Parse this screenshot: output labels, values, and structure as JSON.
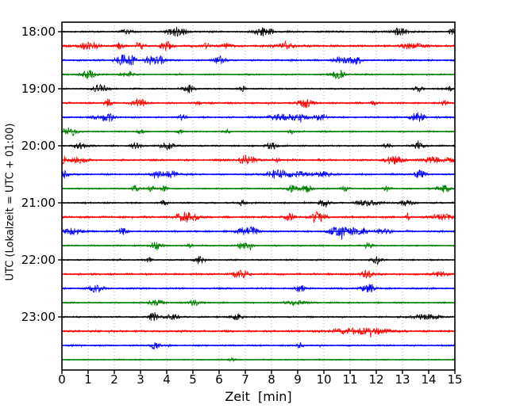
{
  "chart_data": {
    "type": "line",
    "subtype": "seismogram-dayplot",
    "title": "",
    "xlabel": "Zeit  [min]",
    "ylabel": "UTC (Lokalzeit = UTC + 01:00)",
    "xlim": [
      0,
      15
    ],
    "minutes_per_line": 15,
    "x_tick_labels": [
      "0",
      "1",
      "2",
      "3",
      "4",
      "5",
      "6",
      "7",
      "8",
      "9",
      "10",
      "11",
      "12",
      "13",
      "14",
      "15"
    ],
    "y_tick_labels": [
      {
        "trace": 0,
        "label": "18:00"
      },
      {
        "trace": 4,
        "label": "19:00"
      },
      {
        "trace": 8,
        "label": "20:00"
      },
      {
        "trace": 12,
        "label": "21:00"
      },
      {
        "trace": 16,
        "label": "22:00"
      },
      {
        "trace": 20,
        "label": "23:00"
      }
    ],
    "grid": {
      "vertical": true,
      "horizontal": false,
      "style": "dotted",
      "color": "#aaaaaa"
    },
    "legend": "none",
    "color_cycle": [
      "#000000",
      "#ff0000",
      "#0000ff",
      "#008000"
    ],
    "traces": [
      {
        "start_time": "18:00",
        "color": "#000000",
        "base_noise": 1.2,
        "bursts": [
          [
            2.5,
            1.5,
            0.15
          ],
          [
            4.4,
            2.6,
            0.25
          ],
          [
            7.6,
            2.0,
            0.2
          ],
          [
            7.9,
            1.5,
            0.15
          ],
          [
            12.9,
            2.3,
            0.2
          ],
          [
            14.9,
            1.6,
            0.1
          ]
        ]
      },
      {
        "start_time": "18:15",
        "color": "#ff0000",
        "base_noise": 1.5,
        "bursts": [
          [
            0.9,
            2.0,
            0.2
          ],
          [
            1.3,
            1.5,
            0.1
          ],
          [
            2.2,
            1.5,
            0.1
          ],
          [
            3.0,
            1.5,
            0.1
          ],
          [
            4.0,
            2.5,
            0.15
          ],
          [
            5.5,
            1.5,
            0.1
          ],
          [
            6.3,
            1.5,
            0.12
          ],
          [
            8.5,
            1.2,
            0.3
          ],
          [
            13.4,
            1.3,
            0.3
          ]
        ]
      },
      {
        "start_time": "18:30",
        "color": "#0000ff",
        "base_noise": 1.2,
        "bursts": [
          [
            2.35,
            3.0,
            0.2
          ],
          [
            2.7,
            2.0,
            0.1
          ],
          [
            3.3,
            1.8,
            0.1
          ],
          [
            3.55,
            1.8,
            0.2
          ],
          [
            3.8,
            1.6,
            0.1
          ],
          [
            6.05,
            2.5,
            0.15
          ],
          [
            10.6,
            1.8,
            0.15
          ],
          [
            11.0,
            1.6,
            0.2
          ],
          [
            11.3,
            1.6,
            0.1
          ]
        ]
      },
      {
        "start_time": "18:45",
        "color": "#008000",
        "base_noise": 1.0,
        "bursts": [
          [
            1.0,
            2.2,
            0.2
          ],
          [
            2.3,
            1.3,
            0.1
          ],
          [
            2.6,
            1.3,
            0.1
          ],
          [
            10.5,
            2.0,
            0.15
          ],
          [
            10.7,
            1.6,
            0.1
          ]
        ]
      },
      {
        "start_time": "19:00",
        "color": "#000000",
        "base_noise": 1.0,
        "bursts": [
          [
            1.3,
            1.4,
            0.15
          ],
          [
            1.6,
            1.4,
            0.15
          ],
          [
            4.85,
            2.2,
            0.15
          ],
          [
            6.9,
            1.5,
            0.08
          ],
          [
            13.6,
            1.6,
            0.12
          ],
          [
            14.8,
            1.4,
            0.08
          ]
        ]
      },
      {
        "start_time": "19:15",
        "color": "#ff0000",
        "base_noise": 1.2,
        "bursts": [
          [
            1.75,
            2.2,
            0.1
          ],
          [
            2.85,
            2.2,
            0.12
          ],
          [
            3.1,
            1.8,
            0.08
          ],
          [
            5.2,
            1.3,
            0.08
          ],
          [
            9.3,
            2.5,
            0.18
          ],
          [
            11.9,
            1.4,
            0.06
          ],
          [
            14.6,
            1.3,
            0.1
          ]
        ]
      },
      {
        "start_time": "19:30",
        "color": "#0000ff",
        "base_noise": 1.2,
        "bursts": [
          [
            1.5,
            1.8,
            0.2
          ],
          [
            1.8,
            1.6,
            0.15
          ],
          [
            4.6,
            1.4,
            0.1
          ],
          [
            8.3,
            1.5,
            0.3
          ],
          [
            9.0,
            1.5,
            0.3
          ],
          [
            9.9,
            1.5,
            0.2
          ],
          [
            13.45,
            2.2,
            0.12
          ],
          [
            13.7,
            2.0,
            0.1
          ]
        ]
      },
      {
        "start_time": "19:45",
        "color": "#008000",
        "base_noise": 1.0,
        "bursts": [
          [
            0.3,
            2.5,
            0.2
          ],
          [
            3.0,
            1.3,
            0.1
          ],
          [
            4.5,
            1.3,
            0.1
          ],
          [
            6.3,
            1.3,
            0.08
          ],
          [
            8.8,
            1.4,
            0.1
          ]
        ]
      },
      {
        "start_time": "20:00",
        "color": "#000000",
        "base_noise": 1.1,
        "bursts": [
          [
            0.7,
            1.5,
            0.2
          ],
          [
            2.8,
            1.8,
            0.12
          ],
          [
            4.0,
            2.5,
            0.18
          ],
          [
            8.0,
            2.2,
            0.15
          ],
          [
            12.4,
            1.6,
            0.1
          ],
          [
            13.6,
            1.7,
            0.15
          ]
        ]
      },
      {
        "start_time": "20:15",
        "color": "#ff0000",
        "base_noise": 1.3,
        "bursts": [
          [
            0.05,
            2.5,
            0.08
          ],
          [
            0.6,
            1.6,
            0.2
          ],
          [
            7.05,
            2.8,
            0.2
          ],
          [
            8.2,
            1.4,
            0.08
          ],
          [
            12.7,
            2.2,
            0.25
          ],
          [
            14.2,
            1.5,
            0.3
          ],
          [
            14.8,
            1.5,
            0.1
          ]
        ]
      },
      {
        "start_time": "20:30",
        "color": "#0000ff",
        "base_noise": 1.2,
        "bursts": [
          [
            0.1,
            2.2,
            0.1
          ],
          [
            3.6,
            2.2,
            0.15
          ],
          [
            4.15,
            2.0,
            0.2
          ],
          [
            8.2,
            2.2,
            0.3
          ],
          [
            9.0,
            1.5,
            0.3
          ],
          [
            10.0,
            1.5,
            0.2
          ],
          [
            13.65,
            2.2,
            0.15
          ]
        ]
      },
      {
        "start_time": "20:45",
        "color": "#008000",
        "base_noise": 1.0,
        "bursts": [
          [
            2.8,
            1.4,
            0.1
          ],
          [
            3.4,
            1.6,
            0.1
          ],
          [
            3.9,
            1.5,
            0.1
          ],
          [
            8.8,
            2.0,
            0.15
          ],
          [
            9.35,
            2.0,
            0.15
          ],
          [
            10.8,
            1.4,
            0.1
          ],
          [
            12.4,
            1.4,
            0.1
          ],
          [
            14.55,
            2.2,
            0.15
          ]
        ]
      },
      {
        "start_time": "21:00",
        "color": "#000000",
        "base_noise": 1.1,
        "bursts": [
          [
            3.9,
            1.4,
            0.1
          ],
          [
            6.9,
            1.4,
            0.1
          ],
          [
            10.0,
            2.9,
            0.12
          ],
          [
            11.7,
            1.5,
            0.3
          ],
          [
            13.1,
            1.5,
            0.2
          ]
        ]
      },
      {
        "start_time": "21:15",
        "color": "#ff0000",
        "base_noise": 1.4,
        "bursts": [
          [
            4.5,
            1.8,
            0.15
          ],
          [
            4.8,
            2.2,
            0.15
          ],
          [
            5.1,
            1.8,
            0.1
          ],
          [
            8.7,
            2.2,
            0.12
          ],
          [
            9.65,
            2.8,
            0.1
          ],
          [
            9.9,
            2.6,
            0.12
          ],
          [
            13.2,
            2.5,
            0.04
          ],
          [
            14.5,
            1.6,
            0.3
          ]
        ]
      },
      {
        "start_time": "21:30",
        "color": "#0000ff",
        "base_noise": 1.2,
        "bursts": [
          [
            0.4,
            1.6,
            0.3
          ],
          [
            2.3,
            1.8,
            0.12
          ],
          [
            7.0,
            2.0,
            0.25
          ],
          [
            7.3,
            1.8,
            0.1
          ],
          [
            10.4,
            2.0,
            0.15
          ],
          [
            10.75,
            2.2,
            0.15
          ],
          [
            11.1,
            2.2,
            0.12
          ],
          [
            11.5,
            1.8,
            0.15
          ],
          [
            12.2,
            1.5,
            0.2
          ]
        ]
      },
      {
        "start_time": "21:45",
        "color": "#008000",
        "base_noise": 1.0,
        "bursts": [
          [
            3.6,
            2.5,
            0.15
          ],
          [
            4.9,
            1.4,
            0.08
          ],
          [
            6.85,
            1.8,
            0.12
          ],
          [
            7.15,
            1.6,
            0.1
          ],
          [
            11.7,
            1.8,
            0.12
          ]
        ]
      },
      {
        "start_time": "22:00",
        "color": "#000000",
        "base_noise": 1.0,
        "bursts": [
          [
            3.3,
            1.4,
            0.08
          ],
          [
            5.2,
            2.0,
            0.12
          ],
          [
            12.0,
            1.6,
            0.15
          ]
        ]
      },
      {
        "start_time": "22:15",
        "color": "#ff0000",
        "base_noise": 1.3,
        "bursts": [
          [
            6.8,
            2.2,
            0.2
          ],
          [
            11.65,
            2.2,
            0.15
          ],
          [
            14.4,
            1.3,
            0.2
          ]
        ]
      },
      {
        "start_time": "22:30",
        "color": "#0000ff",
        "base_noise": 1.2,
        "bursts": [
          [
            1.3,
            2.0,
            0.2
          ],
          [
            9.1,
            2.2,
            0.1
          ],
          [
            11.6,
            2.0,
            0.15
          ],
          [
            11.85,
            1.8,
            0.1
          ]
        ]
      },
      {
        "start_time": "22:45",
        "color": "#008000",
        "base_noise": 1.0,
        "bursts": [
          [
            3.6,
            2.2,
            0.18
          ],
          [
            5.05,
            1.6,
            0.15
          ],
          [
            8.9,
            1.2,
            0.3
          ]
        ]
      },
      {
        "start_time": "23:00",
        "color": "#000000",
        "base_noise": 1.1,
        "bursts": [
          [
            3.5,
            2.6,
            0.12
          ],
          [
            4.2,
            1.4,
            0.2
          ],
          [
            6.65,
            1.5,
            0.15
          ],
          [
            13.9,
            1.3,
            0.4
          ]
        ]
      },
      {
        "start_time": "23:15",
        "color": "#ff0000",
        "base_noise": 1.4,
        "bursts": [
          [
            11.0,
            1.5,
            0.5
          ],
          [
            12.0,
            1.4,
            0.4
          ]
        ]
      },
      {
        "start_time": "23:30",
        "color": "#0000ff",
        "base_noise": 1.1,
        "bursts": [
          [
            3.55,
            2.2,
            0.12
          ],
          [
            9.1,
            1.6,
            0.08
          ]
        ]
      },
      {
        "start_time": "23:45",
        "color": "#008000",
        "base_noise": 0.8,
        "bursts": [
          [
            6.5,
            0.9,
            0.1
          ]
        ]
      }
    ]
  }
}
